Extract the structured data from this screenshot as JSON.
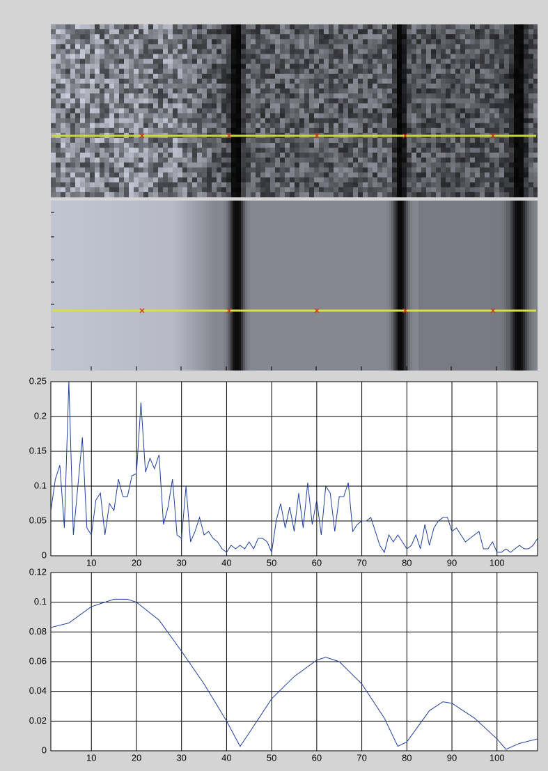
{
  "chart_data": [
    {
      "type": "line",
      "x": [
        1,
        2,
        3,
        4,
        5,
        6,
        7,
        8,
        9,
        10,
        11,
        12,
        13,
        14,
        15,
        16,
        17,
        18,
        19,
        20,
        21,
        22,
        23,
        24,
        25,
        26,
        27,
        28,
        29,
        30,
        31,
        32,
        33,
        34,
        35,
        36,
        37,
        38,
        39,
        40,
        41,
        42,
        43,
        44,
        45,
        46,
        47,
        48,
        49,
        50,
        51,
        52,
        53,
        54,
        55,
        56,
        57,
        58,
        59,
        60,
        61,
        62,
        63,
        64,
        65,
        66,
        67,
        68,
        69,
        70,
        71,
        72,
        73,
        74,
        75,
        76,
        77,
        78,
        79,
        80,
        81,
        82,
        83,
        84,
        85,
        86,
        87,
        88,
        89,
        90,
        91,
        92,
        93,
        94,
        95,
        96,
        97,
        98,
        99,
        100,
        101,
        102,
        103,
        104,
        105,
        106,
        107,
        108,
        109
      ],
      "values": [
        0.065,
        0.11,
        0.13,
        0.04,
        0.25,
        0.03,
        0.1,
        0.17,
        0.04,
        0.03,
        0.08,
        0.09,
        0.03,
        0.075,
        0.065,
        0.11,
        0.085,
        0.085,
        0.115,
        0.118,
        0.22,
        0.12,
        0.14,
        0.125,
        0.145,
        0.045,
        0.07,
        0.11,
        0.03,
        0.025,
        0.1,
        0.02,
        0.035,
        0.055,
        0.03,
        0.035,
        0.025,
        0.02,
        0.01,
        0.005,
        0.015,
        0.01,
        0.015,
        0.01,
        0.02,
        0.01,
        0.025,
        0.025,
        0.02,
        0.005,
        0.05,
        0.075,
        0.04,
        0.07,
        0.035,
        0.09,
        0.04,
        0.105,
        0.045,
        0.08,
        0.03,
        0.1,
        0.09,
        0.035,
        0.085,
        0.085,
        0.105,
        0.035,
        0.045,
        0.05,
        0.05,
        0.055,
        0.035,
        0.015,
        0.005,
        0.03,
        0.02,
        0.03,
        0.02,
        0.01,
        0.015,
        0.03,
        0.01,
        0.045,
        0.015,
        0.04,
        0.05,
        0.055,
        0.055,
        0.035,
        0.04,
        0.03,
        0.02,
        0.025,
        0.03,
        0.035,
        0.01,
        0.01,
        0.02,
        0.005,
        0.005,
        0.01,
        0.005,
        0.01,
        0.015,
        0.01,
        0.01,
        0.015,
        0.025
      ],
      "color": "#1f3f9f",
      "xlim": [
        1,
        109
      ],
      "xticks": [
        10,
        20,
        30,
        40,
        50,
        60,
        70,
        80,
        90,
        100
      ],
      "ylim": [
        0,
        0.25
      ],
      "yticks": [
        0,
        0.05,
        0.1,
        0.15,
        0.2,
        0.25
      ],
      "grid": true
    },
    {
      "type": "line",
      "x": [
        1,
        5,
        10,
        15,
        18,
        20,
        25,
        30,
        35,
        40,
        43,
        45,
        50,
        55,
        60,
        62,
        65,
        70,
        75,
        78,
        80,
        85,
        88,
        90,
        95,
        100,
        102,
        105,
        109
      ],
      "values": [
        0.083,
        0.086,
        0.097,
        0.102,
        0.102,
        0.1,
        0.088,
        0.067,
        0.045,
        0.02,
        0.003,
        0.012,
        0.035,
        0.05,
        0.061,
        0.063,
        0.06,
        0.045,
        0.022,
        0.003,
        0.006,
        0.027,
        0.033,
        0.032,
        0.022,
        0.008,
        0.001,
        0.005,
        0.008
      ],
      "color": "#1f3f9f",
      "xlim": [
        1,
        109
      ],
      "xticks": [
        10,
        20,
        30,
        40,
        50,
        60,
        70,
        80,
        90,
        100
      ],
      "ylim": [
        0,
        0.12
      ],
      "yticks": [
        0,
        0.02,
        0.04,
        0.06,
        0.08,
        0.1,
        0.12
      ],
      "grid": true
    }
  ]
}
